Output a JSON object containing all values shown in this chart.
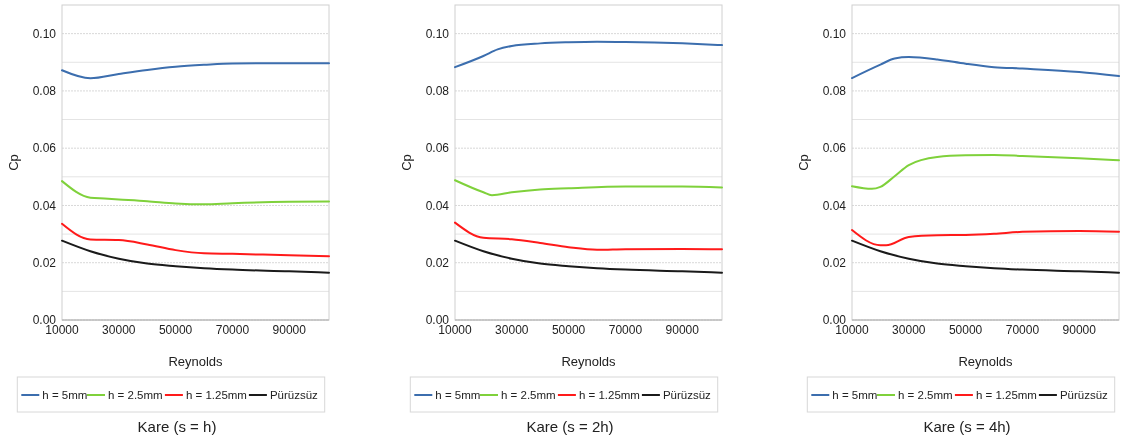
{
  "chart_data": [
    {
      "type": "line",
      "title": "Kare (s = h)",
      "xlabel": "Reynolds",
      "ylabel": "Cp",
      "xlim": [
        10000,
        104000
      ],
      "ylim": [
        0,
        0.11
      ],
      "xticks": [
        10000,
        30000,
        50000,
        70000,
        90000
      ],
      "yticks": [
        {
          "value": 0,
          "label": "0.00"
        },
        {
          "value": 0.01,
          "label": null
        },
        {
          "value": 0.02,
          "label": "0.02"
        },
        {
          "value": 0.03,
          "label": null
        },
        {
          "value": 0.04,
          "label": "0.04"
        },
        {
          "value": 0.05,
          "label": null
        },
        {
          "value": 0.06,
          "label": "0.06"
        },
        {
          "value": 0.07,
          "label": null
        },
        {
          "value": 0.08,
          "label": "0.08"
        },
        {
          "value": 0.09,
          "label": null
        },
        {
          "value": 0.1,
          "label": "0.10"
        }
      ],
      "grid": "y",
      "legend": "bottom",
      "marker": "none",
      "line_style": "solid",
      "series": [
        {
          "name": "h = 5mm",
          "color": "#3c6eae",
          "x": [
            10000,
            20000,
            30000,
            40000,
            50000,
            60000,
            70000,
            90000,
            104000
          ],
          "values": [
            0.0872,
            0.0844,
            0.0859,
            0.0873,
            0.0884,
            0.0891,
            0.0896,
            0.0897,
            0.0897
          ]
        },
        {
          "name": "h = 2.5mm",
          "color": "#7fd13b",
          "x": [
            10000,
            20000,
            25000,
            30000,
            40000,
            50000,
            60000,
            70000,
            90000,
            104000
          ],
          "values": [
            0.0485,
            0.0427,
            0.0424,
            0.0421,
            0.0415,
            0.0407,
            0.0404,
            0.0408,
            0.0413,
            0.0414
          ]
        },
        {
          "name": "h = 1.25mm",
          "color": "#ff1a1a",
          "x": [
            10000,
            20000,
            30000,
            40000,
            50000,
            60000,
            70000,
            90000,
            104000
          ],
          "values": [
            0.0336,
            0.0281,
            0.0279,
            0.0264,
            0.0244,
            0.0233,
            0.0231,
            0.0226,
            0.0223
          ]
        },
        {
          "name": "Pürüzsüz",
          "color": "#1a1a1a",
          "x": [
            10000,
            20000,
            30000,
            40000,
            50000,
            60000,
            70000,
            90000,
            104000
          ],
          "values": [
            0.0277,
            0.024,
            0.0214,
            0.0197,
            0.0188,
            0.0181,
            0.0176,
            0.017,
            0.0165
          ]
        }
      ]
    },
    {
      "type": "line",
      "title": "Kare (s = 2h)",
      "xlabel": "Reynolds",
      "ylabel": "Cp",
      "xlim": [
        10000,
        104000
      ],
      "ylim": [
        0,
        0.11
      ],
      "xticks": [
        10000,
        30000,
        50000,
        70000,
        90000
      ],
      "yticks": [
        {
          "value": 0,
          "label": "0.00"
        },
        {
          "value": 0.01,
          "label": null
        },
        {
          "value": 0.02,
          "label": "0.02"
        },
        {
          "value": 0.03,
          "label": null
        },
        {
          "value": 0.04,
          "label": "0.04"
        },
        {
          "value": 0.05,
          "label": null
        },
        {
          "value": 0.06,
          "label": "0.06"
        },
        {
          "value": 0.07,
          "label": null
        },
        {
          "value": 0.08,
          "label": "0.08"
        },
        {
          "value": 0.09,
          "label": null
        },
        {
          "value": 0.1,
          "label": "0.10"
        }
      ],
      "grid": "y",
      "legend": "bottom",
      "marker": "none",
      "line_style": "solid",
      "series": [
        {
          "name": "h = 5mm",
          "color": "#3c6eae",
          "x": [
            10000,
            20000,
            25000,
            30000,
            40000,
            50000,
            60000,
            70000,
            90000,
            104000
          ],
          "values": [
            0.0883,
            0.0922,
            0.0945,
            0.0957,
            0.0966,
            0.097,
            0.0972,
            0.0971,
            0.0966,
            0.096
          ]
        },
        {
          "name": "h = 2.5mm",
          "color": "#7fd13b",
          "x": [
            10000,
            20000,
            23000,
            30000,
            40000,
            50000,
            70000,
            90000,
            104000
          ],
          "values": [
            0.0488,
            0.0446,
            0.0436,
            0.0446,
            0.0456,
            0.046,
            0.0466,
            0.0466,
            0.0463
          ]
        },
        {
          "name": "h = 1.25mm",
          "color": "#ff1a1a",
          "x": [
            10000,
            20000,
            30000,
            40000,
            50000,
            60000,
            70000,
            90000,
            104000
          ],
          "values": [
            0.034,
            0.0287,
            0.0282,
            0.0269,
            0.0254,
            0.0245,
            0.0247,
            0.0248,
            0.0247
          ]
        },
        {
          "name": "Pürüzsüz",
          "color": "#1a1a1a",
          "x": [
            10000,
            20000,
            30000,
            40000,
            50000,
            60000,
            70000,
            90000,
            104000
          ],
          "values": [
            0.0277,
            0.024,
            0.0214,
            0.0197,
            0.0188,
            0.0181,
            0.0176,
            0.017,
            0.0165
          ]
        }
      ]
    },
    {
      "type": "line",
      "title": "Kare (s = 4h)",
      "xlabel": "Reynolds",
      "ylabel": "Cp",
      "xlim": [
        10000,
        104000
      ],
      "ylim": [
        0,
        0.11
      ],
      "xticks": [
        10000,
        30000,
        50000,
        70000,
        90000
      ],
      "yticks": [
        {
          "value": 0,
          "label": "0.00"
        },
        {
          "value": 0.01,
          "label": null
        },
        {
          "value": 0.02,
          "label": "0.02"
        },
        {
          "value": 0.03,
          "label": null
        },
        {
          "value": 0.04,
          "label": "0.04"
        },
        {
          "value": 0.05,
          "label": null
        },
        {
          "value": 0.06,
          "label": "0.06"
        },
        {
          "value": 0.07,
          "label": null
        },
        {
          "value": 0.08,
          "label": "0.08"
        },
        {
          "value": 0.09,
          "label": null
        },
        {
          "value": 0.1,
          "label": "0.10"
        }
      ],
      "grid": "y",
      "legend": "bottom",
      "marker": "none",
      "line_style": "solid",
      "series": [
        {
          "name": "h = 5mm",
          "color": "#3c6eae",
          "x": [
            10000,
            20000,
            25000,
            30000,
            40000,
            50000,
            60000,
            70000,
            90000,
            104000
          ],
          "values": [
            0.0845,
            0.0892,
            0.0913,
            0.0918,
            0.091,
            0.0895,
            0.0883,
            0.0878,
            0.0866,
            0.0852
          ]
        },
        {
          "name": "h = 2.5mm",
          "color": "#7fd13b",
          "x": [
            10000,
            17000,
            20000,
            25000,
            30000,
            40000,
            50000,
            60000,
            70000,
            90000,
            104000
          ],
          "values": [
            0.0467,
            0.0458,
            0.0465,
            0.0502,
            0.0541,
            0.0569,
            0.0575,
            0.0576,
            0.0573,
            0.0565,
            0.0558
          ]
        },
        {
          "name": "h = 1.25mm",
          "color": "#ff1a1a",
          "x": [
            10000,
            20000,
            22000,
            30000,
            40000,
            50000,
            60000,
            70000,
            90000,
            104000
          ],
          "values": [
            0.0314,
            0.0261,
            0.0261,
            0.029,
            0.0296,
            0.0297,
            0.0301,
            0.0308,
            0.0311,
            0.0308
          ]
        },
        {
          "name": "Pürüzsüz",
          "color": "#1a1a1a",
          "x": [
            10000,
            20000,
            30000,
            40000,
            50000,
            60000,
            70000,
            90000,
            104000
          ],
          "values": [
            0.0277,
            0.024,
            0.0214,
            0.0197,
            0.0188,
            0.0181,
            0.0176,
            0.017,
            0.0165
          ]
        }
      ]
    }
  ]
}
